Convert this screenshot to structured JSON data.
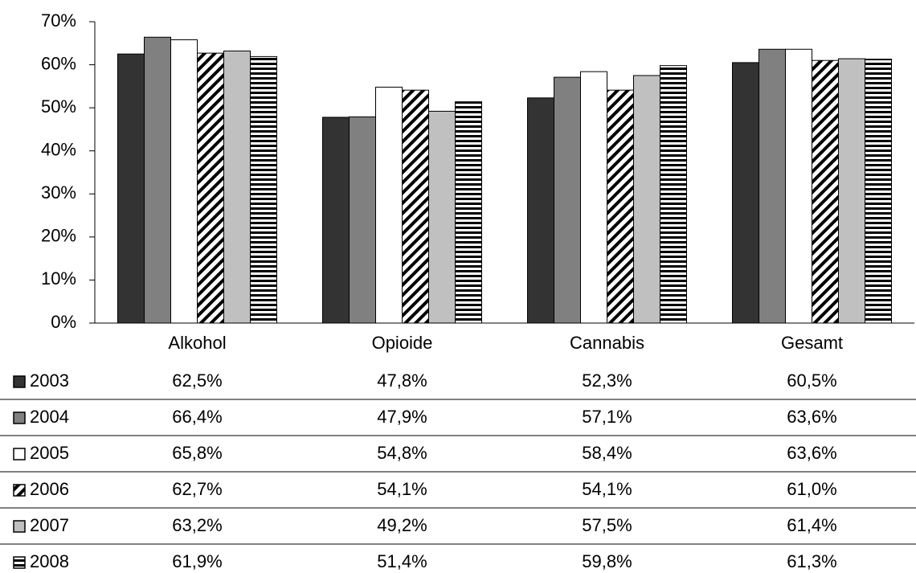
{
  "chart_data": {
    "type": "bar",
    "categories": [
      "Alkohol",
      "Opioide",
      "Cannabis",
      "Gesamt"
    ],
    "series": [
      {
        "name": "2003",
        "color": "#333333",
        "values": [
          62.5,
          47.8,
          52.3,
          60.5
        ],
        "value_labels": [
          "62,5%",
          "47,8%",
          "52,3%",
          "60,5%"
        ]
      },
      {
        "name": "2004",
        "color": "#808080",
        "values": [
          66.4,
          47.9,
          57.1,
          63.6
        ],
        "value_labels": [
          "66,4%",
          "47,9%",
          "57,1%",
          "63,6%"
        ]
      },
      {
        "name": "2005",
        "color": "#ffffff",
        "values": [
          65.8,
          54.8,
          58.4,
          63.6
        ],
        "value_labels": [
          "65,8%",
          "54,8%",
          "58,4%",
          "63,6%"
        ]
      },
      {
        "name": "2006",
        "color": "#000000",
        "pattern": "diagonal",
        "values": [
          62.7,
          54.1,
          54.1,
          61.0
        ],
        "value_labels": [
          "62,7%",
          "54,1%",
          "54,1%",
          "61,0%"
        ]
      },
      {
        "name": "2007",
        "color": "#c0c0c0",
        "values": [
          63.2,
          49.2,
          57.5,
          61.4
        ],
        "value_labels": [
          "63,2%",
          "49,2%",
          "57,5%",
          "61,4%"
        ]
      },
      {
        "name": "2008",
        "color": "#000000",
        "pattern": "horizontal",
        "values": [
          61.9,
          51.4,
          59.8,
          61.3
        ],
        "value_labels": [
          "61,9%",
          "51,4%",
          "59,8%",
          "61,3%"
        ]
      }
    ],
    "ylim": [
      0,
      70
    ],
    "yticks": [
      {
        "value": 0,
        "label": "0%"
      },
      {
        "value": 10,
        "label": "10%"
      },
      {
        "value": 20,
        "label": "20%"
      },
      {
        "value": 30,
        "label": "30%"
      },
      {
        "value": 40,
        "label": "40%"
      },
      {
        "value": 50,
        "label": "50%"
      },
      {
        "value": 60,
        "label": "60%"
      },
      {
        "value": 70,
        "label": "70%"
      }
    ],
    "grid": false
  }
}
